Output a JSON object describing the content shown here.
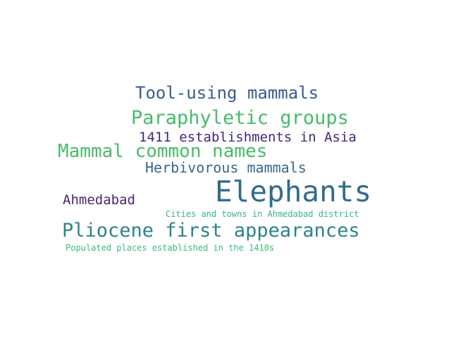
{
  "word_cloud": {
    "background_color": "#ffffff",
    "words": [
      {
        "text": "Tool-using mammals",
        "color": "#3b5a91"
      },
      {
        "text": "Paraphyletic groups",
        "color": "#46bb6b"
      },
      {
        "text": "1411 establishments in Asia",
        "color": "#45277a"
      },
      {
        "text": "Mammal common names",
        "color": "#4abb6a"
      },
      {
        "text": "Herbivorous mammals",
        "color": "#37678d"
      },
      {
        "text": "Elephants",
        "color": "#336c8b"
      },
      {
        "text": "Ahmedabad",
        "color": "#4a2470"
      },
      {
        "text": "Cities and towns in Ahmedabad district",
        "color": "#37b58d"
      },
      {
        "text": "Pliocene first appearances",
        "color": "#2e828c"
      },
      {
        "text": "Populated places established in the 1410s",
        "color": "#38ba7a"
      }
    ]
  }
}
